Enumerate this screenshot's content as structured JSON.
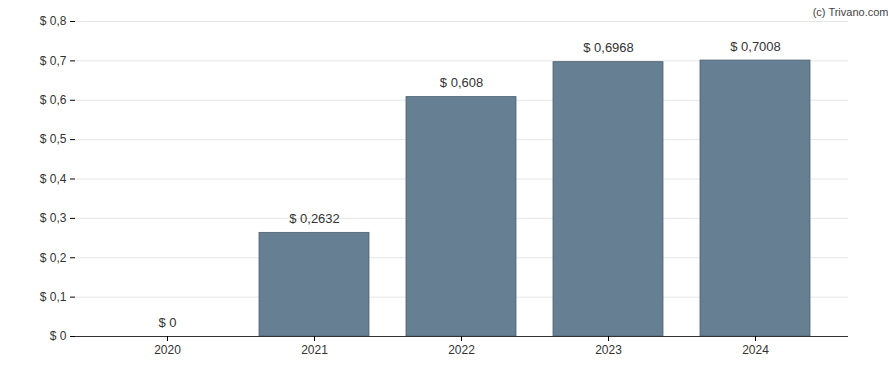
{
  "chart_data": {
    "type": "bar",
    "annotations": [
      "(c) Trivano.com"
    ],
    "categories": [
      "2020",
      "2021",
      "2022",
      "2023",
      "2024"
    ],
    "values": [
      0,
      0.2632,
      0.608,
      0.6968,
      0.7008
    ],
    "value_labels": [
      "$ 0",
      "$ 0,2632",
      "$ 0,608",
      "$ 0,6968",
      "$ 0,7008"
    ],
    "color": "#667f93",
    "ylim": [
      0,
      0.8
    ],
    "yticks": [
      {
        "value": 0,
        "label": "$ 0"
      },
      {
        "value": 0.1,
        "label": "$ 0,1"
      },
      {
        "value": 0.2,
        "label": "$ 0,2"
      },
      {
        "value": 0.3,
        "label": "$ 0,3"
      },
      {
        "value": 0.4,
        "label": "$ 0,4"
      },
      {
        "value": 0.5,
        "label": "$ 0,5"
      },
      {
        "value": 0.6,
        "label": "$ 0,6"
      },
      {
        "value": 0.7,
        "label": "$ 0,7"
      },
      {
        "value": 0.8,
        "label": "$ 0,8"
      }
    ],
    "grid": true,
    "data_labels": true
  }
}
